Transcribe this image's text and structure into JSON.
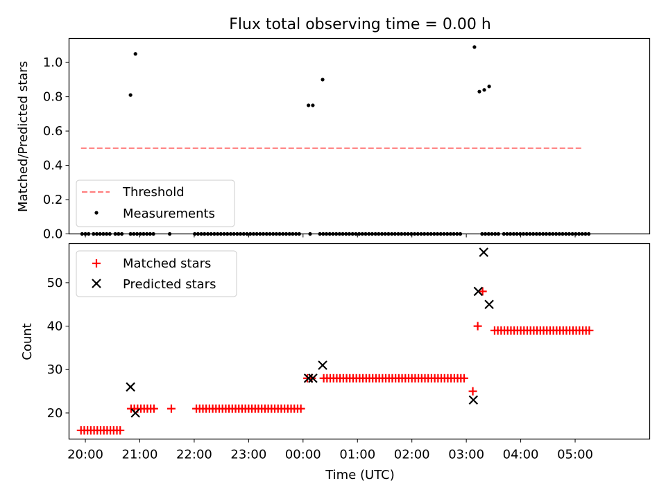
{
  "title": "Flux total observing time = 0.00 h",
  "colors": {
    "threshold": "#ff7f7f",
    "measurements": "#000000",
    "matched": "#ff0000",
    "predicted": "#000000"
  },
  "chart_data": [
    {
      "type": "scatter",
      "title": "Flux total observing time = 0.00 h",
      "xlabel": "",
      "ylabel": "Matched/Predicted stars",
      "xlim": [
        -0.3,
        10.37
      ],
      "ylim": [
        0,
        1.14
      ],
      "xticks": [
        0,
        1,
        2,
        3,
        4,
        5,
        6,
        7,
        8,
        9
      ],
      "xtick_labels_shown": false,
      "yticks": [
        0.0,
        0.2,
        0.4,
        0.6,
        0.8,
        1.0
      ],
      "ytick_labels": [
        "0.0",
        "0.2",
        "0.4",
        "0.6",
        "0.8",
        "1.0"
      ],
      "legend": {
        "position": "lower-left",
        "entries": [
          "Threshold",
          "Measurements"
        ]
      },
      "series": [
        {
          "name": "Threshold",
          "type": "line",
          "style": "dashed",
          "color": "#ff7f7f",
          "x": [
            -0.08,
            9.13
          ],
          "y": [
            0.5,
            0.5
          ]
        },
        {
          "name": "Measurements",
          "type": "scatter",
          "marker": "dot",
          "color": "#000000",
          "points": [
            [
              -0.06,
              0
            ],
            [
              0.0,
              0
            ],
            [
              0.06,
              0
            ],
            [
              0.15,
              0
            ],
            [
              0.21,
              0
            ],
            [
              0.27,
              0
            ],
            [
              0.33,
              0
            ],
            [
              0.39,
              0
            ],
            [
              0.45,
              0
            ],
            [
              0.55,
              0
            ],
            [
              0.61,
              0
            ],
            [
              0.67,
              0
            ],
            [
              0.83,
              0
            ],
            [
              0.89,
              0
            ],
            [
              0.95,
              0
            ],
            [
              1.01,
              0
            ],
            [
              1.07,
              0
            ],
            [
              1.13,
              0
            ],
            [
              1.19,
              0
            ],
            [
              1.25,
              0
            ],
            [
              1.55,
              0
            ],
            [
              2.01,
              0
            ],
            [
              2.07,
              0
            ],
            [
              2.13,
              0
            ],
            [
              2.19,
              0
            ],
            [
              2.25,
              0
            ],
            [
              2.31,
              0
            ],
            [
              2.37,
              0
            ],
            [
              2.43,
              0
            ],
            [
              2.49,
              0
            ],
            [
              2.55,
              0
            ],
            [
              2.61,
              0
            ],
            [
              2.67,
              0
            ],
            [
              2.73,
              0
            ],
            [
              2.79,
              0
            ],
            [
              2.85,
              0
            ],
            [
              2.91,
              0
            ],
            [
              2.97,
              0
            ],
            [
              3.03,
              0
            ],
            [
              3.09,
              0
            ],
            [
              3.15,
              0
            ],
            [
              3.21,
              0
            ],
            [
              3.27,
              0
            ],
            [
              3.33,
              0
            ],
            [
              3.39,
              0
            ],
            [
              3.45,
              0
            ],
            [
              3.51,
              0
            ],
            [
              3.57,
              0
            ],
            [
              3.63,
              0
            ],
            [
              3.69,
              0
            ],
            [
              3.75,
              0
            ],
            [
              3.81,
              0
            ],
            [
              3.87,
              0
            ],
            [
              3.93,
              0
            ],
            [
              4.13,
              0
            ],
            [
              4.31,
              0
            ],
            [
              4.37,
              0
            ],
            [
              4.43,
              0
            ],
            [
              4.49,
              0
            ],
            [
              4.55,
              0
            ],
            [
              4.61,
              0
            ],
            [
              4.67,
              0
            ],
            [
              4.73,
              0
            ],
            [
              4.79,
              0
            ],
            [
              4.85,
              0
            ],
            [
              4.91,
              0
            ],
            [
              4.97,
              0
            ],
            [
              5.03,
              0
            ],
            [
              5.09,
              0
            ],
            [
              5.15,
              0
            ],
            [
              5.21,
              0
            ],
            [
              5.27,
              0
            ],
            [
              5.33,
              0
            ],
            [
              5.39,
              0
            ],
            [
              5.45,
              0
            ],
            [
              5.51,
              0
            ],
            [
              5.57,
              0
            ],
            [
              5.63,
              0
            ],
            [
              5.69,
              0
            ],
            [
              5.75,
              0
            ],
            [
              5.81,
              0
            ],
            [
              5.87,
              0
            ],
            [
              5.93,
              0
            ],
            [
              5.99,
              0
            ],
            [
              6.05,
              0
            ],
            [
              6.11,
              0
            ],
            [
              6.17,
              0
            ],
            [
              6.23,
              0
            ],
            [
              6.29,
              0
            ],
            [
              6.35,
              0
            ],
            [
              6.41,
              0
            ],
            [
              6.47,
              0
            ],
            [
              6.53,
              0
            ],
            [
              6.59,
              0
            ],
            [
              6.65,
              0
            ],
            [
              6.71,
              0
            ],
            [
              6.77,
              0
            ],
            [
              6.83,
              0
            ],
            [
              6.89,
              0
            ],
            [
              7.29,
              0
            ],
            [
              7.35,
              0
            ],
            [
              7.41,
              0
            ],
            [
              7.47,
              0
            ],
            [
              7.53,
              0
            ],
            [
              7.59,
              0
            ],
            [
              7.69,
              0
            ],
            [
              7.75,
              0
            ],
            [
              7.81,
              0
            ],
            [
              7.87,
              0
            ],
            [
              7.93,
              0
            ],
            [
              7.99,
              0
            ],
            [
              8.05,
              0
            ],
            [
              8.11,
              0
            ],
            [
              8.17,
              0
            ],
            [
              8.23,
              0
            ],
            [
              8.29,
              0
            ],
            [
              8.35,
              0
            ],
            [
              8.41,
              0
            ],
            [
              8.47,
              0
            ],
            [
              8.53,
              0
            ],
            [
              8.59,
              0
            ],
            [
              8.65,
              0
            ],
            [
              8.71,
              0
            ],
            [
              8.77,
              0
            ],
            [
              8.83,
              0
            ],
            [
              8.89,
              0
            ],
            [
              8.95,
              0
            ],
            [
              9.01,
              0
            ],
            [
              9.07,
              0
            ],
            [
              9.13,
              0
            ],
            [
              9.19,
              0
            ],
            [
              9.25,
              0
            ],
            [
              0.83,
              0.81
            ],
            [
              0.92,
              1.05
            ],
            [
              4.1,
              0.75
            ],
            [
              4.18,
              0.75
            ],
            [
              4.36,
              0.9
            ],
            [
              7.15,
              1.09
            ],
            [
              7.24,
              0.83
            ],
            [
              7.33,
              0.84
            ],
            [
              7.42,
              0.86
            ]
          ]
        }
      ]
    },
    {
      "type": "scatter",
      "title": "",
      "xlabel": "Time (UTC)",
      "ylabel": "Count",
      "xlim": [
        -0.3,
        10.37
      ],
      "ylim": [
        14,
        59
      ],
      "xticks": [
        0,
        1,
        2,
        3,
        4,
        5,
        6,
        7,
        8,
        9
      ],
      "xtick_labels": [
        "20:00",
        "21:00",
        "22:00",
        "23:00",
        "00:00",
        "01:00",
        "02:00",
        "03:00",
        "04:00",
        "05:00"
      ],
      "yticks": [
        20,
        30,
        40,
        50
      ],
      "ytick_labels": [
        "20",
        "30",
        "40",
        "50"
      ],
      "legend": {
        "position": "upper-left",
        "entries": [
          "Matched stars",
          "Predicted stars"
        ]
      },
      "series": [
        {
          "name": "Matched stars",
          "marker": "plus",
          "color": "#ff0000",
          "segments": [
            {
              "x_start": -0.08,
              "x_end": 0.66,
              "step": 0.06,
              "y": 16
            },
            {
              "x_start": 0.84,
              "x_end": 1.26,
              "step": 0.06,
              "y": 21
            },
            {
              "x_start": 1.58,
              "x_end": 1.58,
              "step": 0.06,
              "y": 21
            },
            {
              "x_start": 2.04,
              "x_end": 3.96,
              "step": 0.06,
              "y": 21
            },
            {
              "x_start": 4.38,
              "x_end": 6.96,
              "step": 0.06,
              "y": 28
            },
            {
              "x_start": 7.52,
              "x_end": 9.26,
              "step": 0.06,
              "y": 39
            }
          ],
          "points": [
            [
              4.08,
              28
            ],
            [
              4.16,
              28
            ],
            [
              7.12,
              25
            ],
            [
              7.21,
              40
            ],
            [
              7.3,
              48
            ]
          ]
        },
        {
          "name": "Predicted stars",
          "marker": "x",
          "color": "#000000",
          "points": [
            [
              0.83,
              26
            ],
            [
              0.92,
              20
            ],
            [
              4.1,
              28
            ],
            [
              4.18,
              28
            ],
            [
              4.36,
              31
            ],
            [
              7.13,
              23
            ],
            [
              7.22,
              48
            ],
            [
              7.32,
              57
            ],
            [
              7.42,
              45
            ]
          ]
        }
      ]
    }
  ]
}
